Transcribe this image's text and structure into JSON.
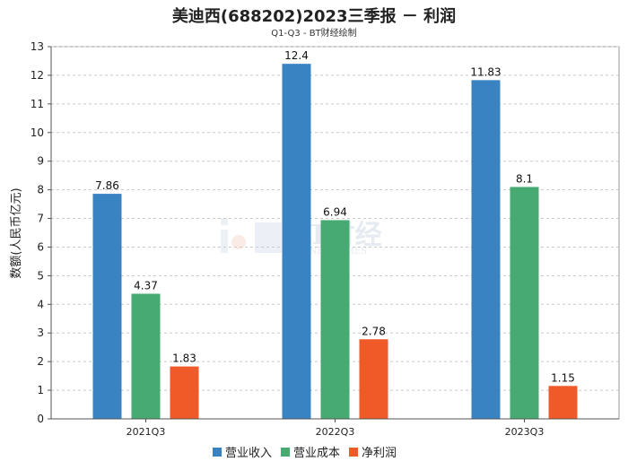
{
  "chart_data": {
    "type": "bar",
    "title": "美迪西(688202)2023三季报 － 利润",
    "subtitle": "Q1-Q3 - BT财经绘制",
    "ylabel": "数额(人民币亿元)",
    "xlabel": "",
    "categories": [
      "2021Q3",
      "2022Q3",
      "2023Q3"
    ],
    "ylim": [
      0,
      13
    ],
    "yticks": [
      0,
      1,
      2,
      3,
      4,
      5,
      6,
      7,
      8,
      9,
      10,
      11,
      12,
      13
    ],
    "grid": true,
    "legend_position": "bottom",
    "series": [
      {
        "name": "营业收入",
        "color": "#3a83c3",
        "values": [
          7.86,
          12.4,
          11.83
        ],
        "labels": [
          "7.86",
          "12.4",
          "11.83"
        ]
      },
      {
        "name": "营业成本",
        "color": "#46aa72",
        "values": [
          4.37,
          6.94,
          8.1
        ],
        "labels": [
          "4.37",
          "6.94",
          "8.1"
        ]
      },
      {
        "name": "净利润",
        "color": "#f05a28",
        "values": [
          1.83,
          2.78,
          1.15
        ],
        "labels": [
          "1.83",
          "2.78",
          "1.15"
        ]
      }
    ]
  },
  "watermark": {
    "line1": "BT财经",
    "line2": "BUSINESSTIMES"
  }
}
